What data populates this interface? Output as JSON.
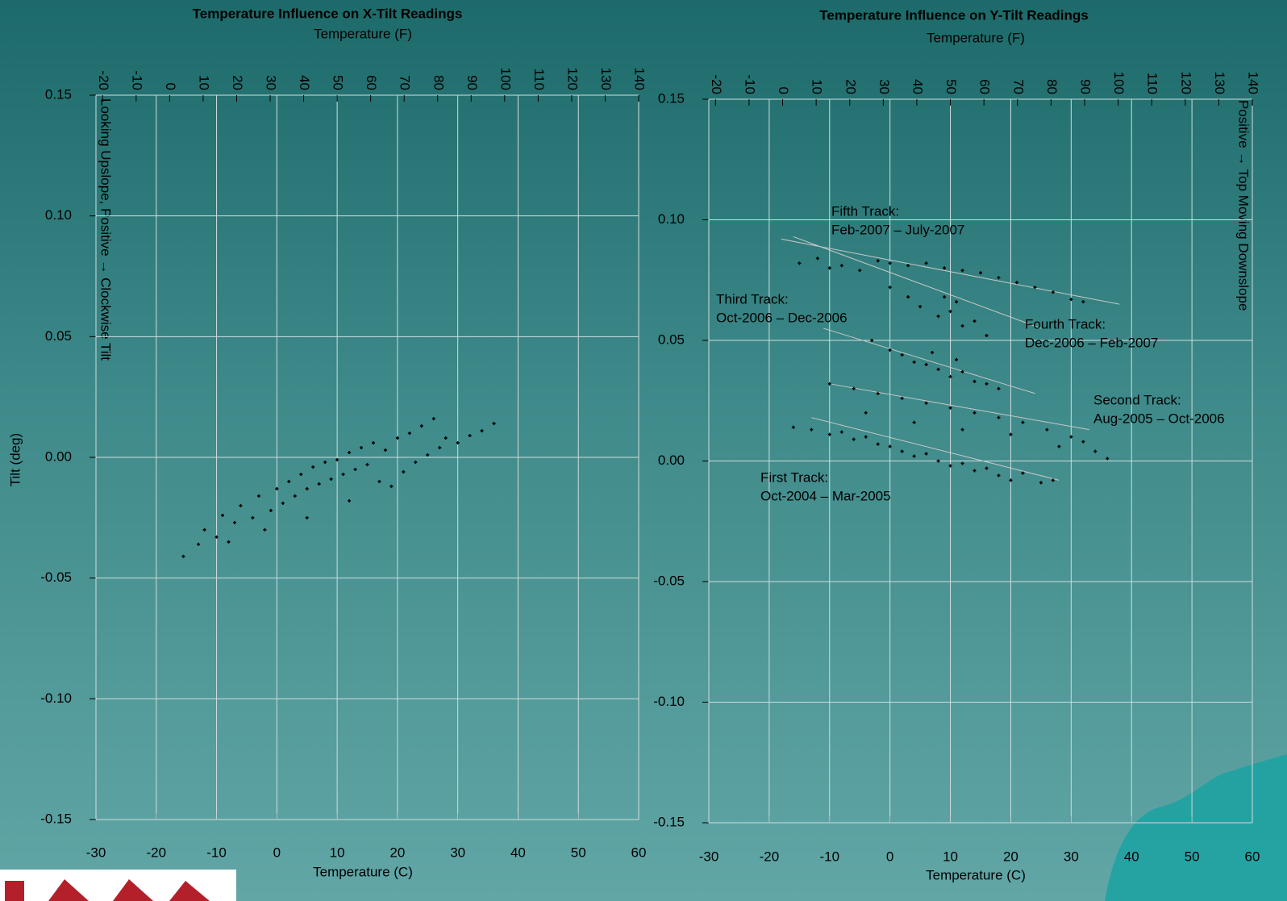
{
  "chart_data": [
    {
      "type": "scatter",
      "title": "Temperature Influence on X-Tilt Readings",
      "x2label": "Temperature (F)",
      "xlabel": "Temperature (C)",
      "ylabel": "Tilt (deg)",
      "annotation": "Looking Upslope, Positive → Clockwise Tilt",
      "xlim": [
        -30,
        60
      ],
      "xticks": [
        -30,
        -20,
        -10,
        0,
        10,
        20,
        30,
        40,
        50,
        60
      ],
      "x2lim": [
        -22,
        140
      ],
      "x2ticks": [
        -20,
        -10,
        0,
        10,
        20,
        30,
        40,
        50,
        60,
        70,
        80,
        90,
        100,
        110,
        120,
        130,
        140
      ],
      "ylim": [
        -0.15,
        0.15
      ],
      "yticks": [
        0.15,
        {
          "value": 0.1,
          "label": "0.10"
        },
        0.05,
        {
          "value": 0,
          "label": "0.00"
        },
        -0.05,
        {
          "value": -0.1,
          "label": "-0.10"
        },
        -0.15
      ],
      "grid": true,
      "series": [
        {
          "color": "#000000",
          "x": [
            -15.5,
            -13,
            -12,
            -10,
            -9,
            -7,
            -6,
            -4,
            -3,
            -1,
            0,
            1,
            2,
            3,
            4,
            5,
            6,
            7,
            8,
            9,
            10,
            11,
            12,
            13,
            14,
            15,
            16,
            17,
            18,
            19,
            20,
            21,
            22,
            23,
            24,
            25,
            26,
            27,
            28,
            30,
            32,
            34,
            36,
            -8,
            -2,
            5,
            12
          ],
          "values": [
            -0.041,
            -0.036,
            -0.03,
            -0.033,
            -0.024,
            -0.027,
            -0.02,
            -0.025,
            -0.016,
            -0.022,
            -0.013,
            -0.019,
            -0.01,
            -0.016,
            -0.007,
            -0.013,
            -0.004,
            -0.011,
            -0.002,
            -0.009,
            -0.001,
            -0.007,
            0.002,
            -0.005,
            0.004,
            -0.003,
            0.006,
            -0.01,
            0.003,
            -0.012,
            0.008,
            -0.006,
            0.01,
            -0.002,
            0.013,
            0.001,
            0.016,
            0.004,
            0.008,
            0.006,
            0.009,
            0.011,
            0.014,
            -0.035,
            -0.03,
            -0.025,
            -0.018
          ]
        }
      ]
    },
    {
      "type": "scatter",
      "title": "Temperature Influence on Y-Tilt Readings",
      "x2label": "Temperature (F)",
      "xlabel": "Temperature (C)",
      "annotation": "Positive → Top Moving Downslope",
      "xlim": [
        -30,
        60
      ],
      "xticks": [
        -30,
        -20,
        -10,
        0,
        10,
        20,
        30,
        40,
        50,
        60
      ],
      "x2lim": [
        -22,
        140
      ],
      "x2ticks": [
        -20,
        -10,
        0,
        10,
        20,
        30,
        40,
        50,
        60,
        70,
        80,
        90,
        100,
        110,
        120,
        130,
        140
      ],
      "ylim": [
        -0.15,
        0.15
      ],
      "yticks": [
        0.15,
        {
          "value": 0.1,
          "label": "0.10"
        },
        0.05,
        {
          "value": 0,
          "label": "0.00"
        },
        -0.05,
        {
          "value": -0.1,
          "label": "-0.10"
        },
        -0.15
      ],
      "grid": true,
      "series": [
        {
          "name": "First Track:",
          "period": "Oct-2004 – Mar-2005",
          "color": "#000000",
          "x": [
            -16,
            -13,
            -10,
            -8,
            -6,
            -4,
            -2,
            0,
            2,
            4,
            6,
            8,
            10,
            12,
            14,
            16,
            18,
            20,
            22,
            25,
            27
          ],
          "values": [
            0.014,
            0.013,
            0.011,
            0.012,
            0.009,
            0.01,
            0.007,
            0.006,
            0.004,
            0.002,
            0.003,
            0,
            -0.002,
            -0.001,
            -0.004,
            -0.003,
            -0.006,
            -0.008,
            -0.005,
            -0.009,
            -0.008
          ],
          "trend": {
            "x": [
              -13,
              28
            ],
            "y": [
              0.018,
              -0.008
            ]
          }
        },
        {
          "name": "Second Track:",
          "period": "Aug-2005 – Oct-2006",
          "color": "#000000",
          "x": [
            -10,
            -6,
            -2,
            2,
            6,
            10,
            14,
            18,
            22,
            26,
            30,
            32,
            34,
            36,
            -4,
            4,
            12,
            20,
            28
          ],
          "values": [
            0.032,
            0.03,
            0.028,
            0.026,
            0.024,
            0.022,
            0.02,
            0.018,
            0.016,
            0.013,
            0.01,
            0.008,
            0.004,
            0.001,
            0.02,
            0.016,
            0.013,
            0.011,
            0.006
          ],
          "trend": {
            "x": [
              -10,
              33
            ],
            "y": [
              0.032,
              0.013
            ]
          }
        },
        {
          "name": "Third Track:",
          "period": "Oct-2006 – Dec-2006",
          "color": "#000000",
          "x": [
            -3,
            0,
            2,
            4,
            6,
            8,
            10,
            12,
            14,
            16,
            18,
            7,
            11
          ],
          "values": [
            0.05,
            0.046,
            0.044,
            0.041,
            0.04,
            0.038,
            0.035,
            0.037,
            0.033,
            0.032,
            0.03,
            0.045,
            0.042
          ],
          "trend": {
            "x": [
              -11,
              24
            ],
            "y": [
              0.055,
              0.028
            ]
          }
        },
        {
          "name": "Fourth Track:",
          "period": "Dec-2006 – Feb-2007",
          "color": "#000000",
          "x": [
            0,
            3,
            5,
            8,
            10,
            12,
            14,
            16,
            9,
            11
          ],
          "values": [
            0.072,
            0.068,
            0.064,
            0.06,
            0.062,
            0.056,
            0.058,
            0.052,
            0.068,
            0.066
          ],
          "trend": {
            "x": [
              -16,
              25
            ],
            "y": [
              0.093,
              0.055
            ]
          }
        },
        {
          "name": "Fifth Track:",
          "period": "Feb-2007 – July-2007",
          "color": "#000000",
          "x": [
            -15,
            -12,
            -10,
            -8,
            -5,
            -2,
            0,
            3,
            6,
            9,
            12,
            15,
            18,
            21,
            24,
            27,
            30,
            32
          ],
          "values": [
            0.082,
            0.084,
            0.08,
            0.081,
            0.079,
            0.083,
            0.082,
            0.081,
            0.082,
            0.08,
            0.079,
            0.078,
            0.076,
            0.074,
            0.072,
            0.07,
            0.067,
            0.066
          ],
          "trend": {
            "x": [
              -18,
              38
            ],
            "y": [
              0.092,
              0.065
            ]
          }
        }
      ]
    }
  ]
}
